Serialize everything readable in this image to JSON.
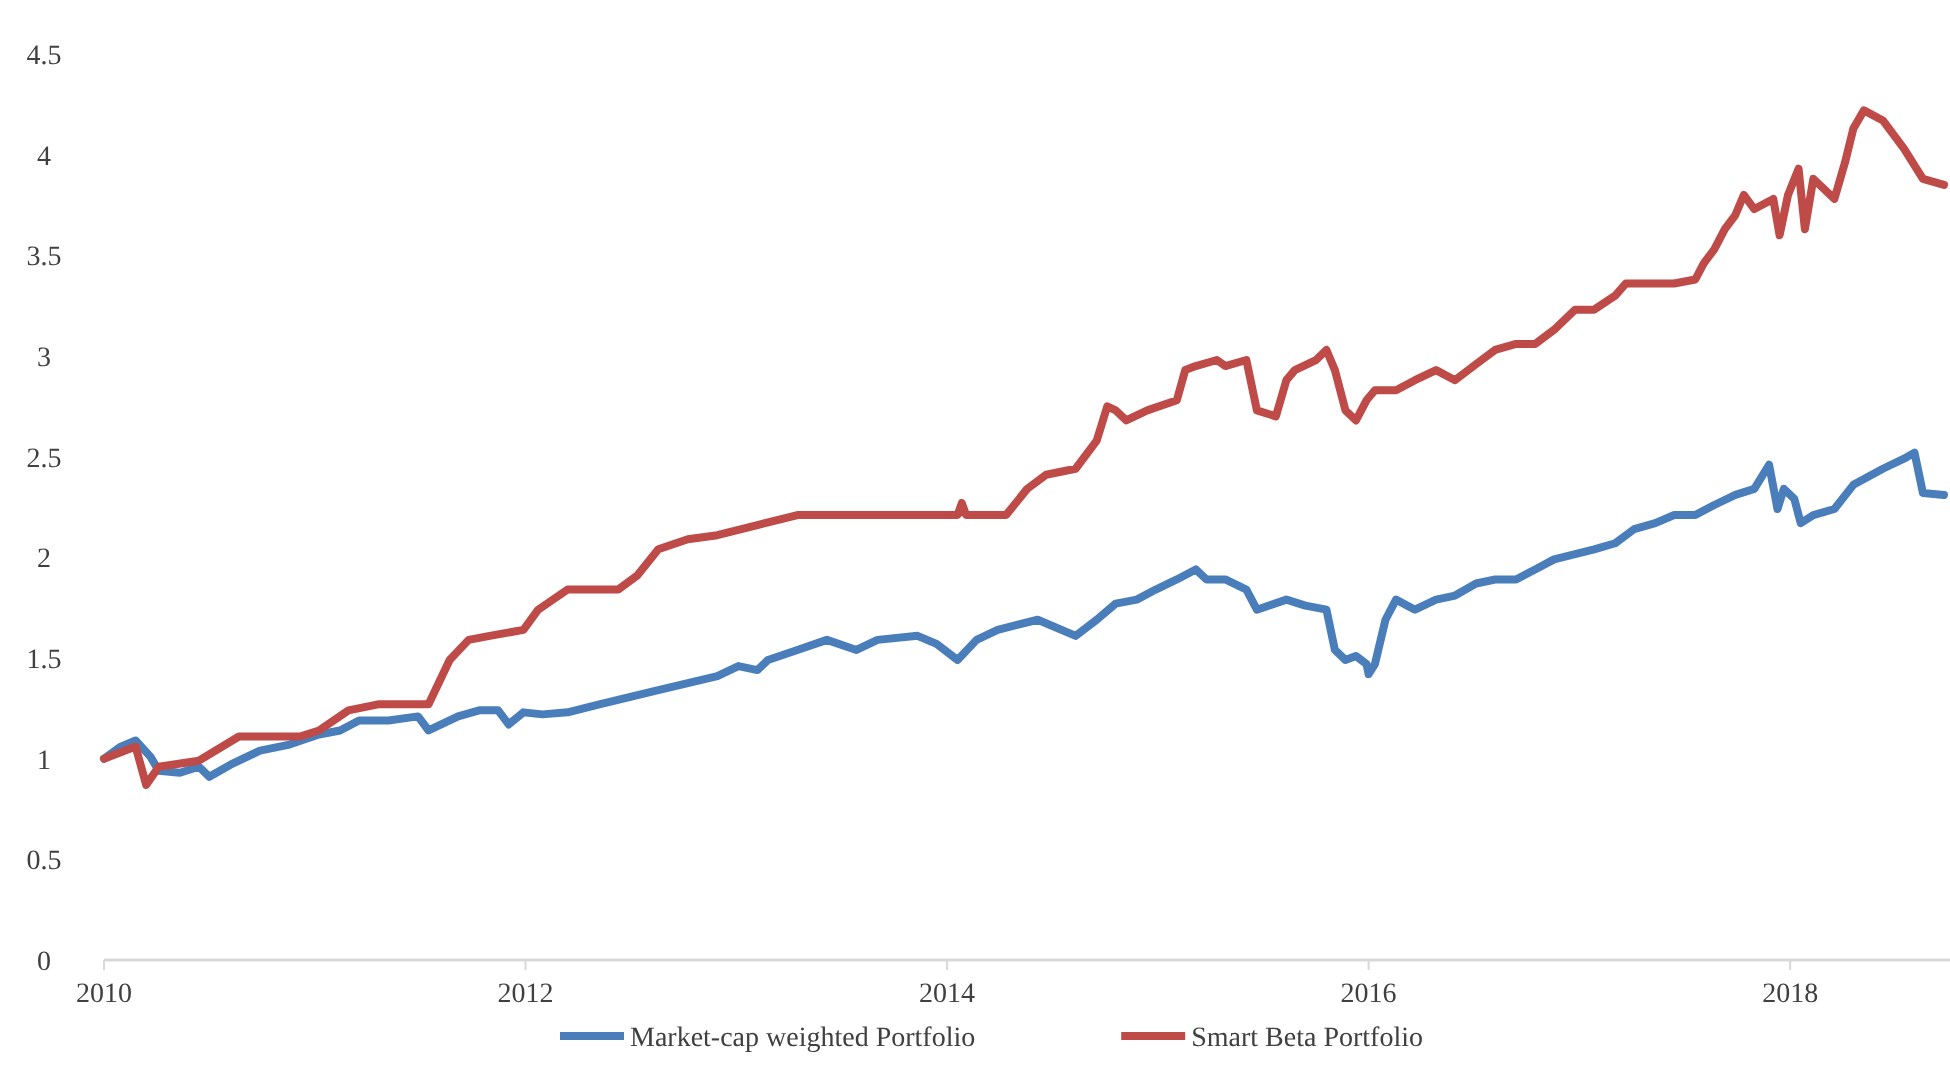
{
  "chart_data": {
    "type": "line",
    "xlim": [
      2010,
      2018.73
    ],
    "xticks": [
      2010,
      2012,
      2014,
      2016,
      2018
    ],
    "ylim": [
      0,
      4.5
    ],
    "yticks": [
      0,
      0.5,
      1,
      1.5,
      2,
      2.5,
      3,
      3.5,
      4,
      4.5
    ],
    "grid": false,
    "legend": "bottom",
    "marker": "none",
    "line_style": "solid",
    "series": [
      {
        "name": "Market-cap weighted Portfolio",
        "color": "#4a7ebb",
        "x": [
          2010,
          2010.08,
          2010.15,
          2010.22,
          2010.26,
          2010.36,
          2010.45,
          2010.5,
          2010.6,
          2010.74,
          2010.88,
          2011.02,
          2011.12,
          2011.21,
          2011.35,
          2011.49,
          2011.54,
          2011.68,
          2011.78,
          2011.87,
          2011.92,
          2011.99,
          2012.08,
          2012.2,
          2012.35,
          2012.63,
          2012.91,
          2013.01,
          2013.1,
          2013.15,
          2013.29,
          2013.43,
          2013.57,
          2013.67,
          2013.86,
          2013.95,
          2014.05,
          2014.14,
          2014.24,
          2014.43,
          2014.61,
          2014.71,
          2014.8,
          2014.9,
          2014.99,
          2015.09,
          2015.18,
          2015.23,
          2015.32,
          2015.42,
          2015.47,
          2015.61,
          2015.7,
          2015.8,
          2015.84,
          2015.89,
          2015.94,
          2015.99,
          2016,
          2016.03,
          2016.08,
          2016.13,
          2016.22,
          2016.32,
          2016.41,
          2016.51,
          2016.6,
          2016.7,
          2016.79,
          2016.88,
          2017.07,
          2017.17,
          2017.26,
          2017.36,
          2017.45,
          2017.55,
          2017.64,
          2017.74,
          2017.83,
          2017.9,
          2017.94,
          2017.97,
          2018.02,
          2018.05,
          2018.11,
          2018.21,
          2018.3,
          2018.44,
          2018.54,
          2018.59,
          2018.63,
          2018.73
        ],
        "values": [
          1,
          1.06,
          1.09,
          1.01,
          0.94,
          0.93,
          0.96,
          0.91,
          0.97,
          1.04,
          1.07,
          1.12,
          1.14,
          1.19,
          1.19,
          1.21,
          1.14,
          1.21,
          1.24,
          1.24,
          1.17,
          1.23,
          1.22,
          1.23,
          1.27,
          1.34,
          1.41,
          1.46,
          1.44,
          1.49,
          1.54,
          1.59,
          1.54,
          1.59,
          1.61,
          1.57,
          1.49,
          1.59,
          1.64,
          1.69,
          1.61,
          1.69,
          1.77,
          1.79,
          1.84,
          1.89,
          1.94,
          1.89,
          1.89,
          1.84,
          1.74,
          1.79,
          1.76,
          1.74,
          1.54,
          1.49,
          1.51,
          1.47,
          1.42,
          1.47,
          1.69,
          1.79,
          1.74,
          1.79,
          1.81,
          1.87,
          1.89,
          1.89,
          1.94,
          1.99,
          2.04,
          2.07,
          2.14,
          2.17,
          2.21,
          2.21,
          2.26,
          2.31,
          2.34,
          2.46,
          2.24,
          2.34,
          2.29,
          2.17,
          2.21,
          2.24,
          2.36,
          2.44,
          2.49,
          2.52,
          2.32,
          2.31
        ]
      },
      {
        "name": "Smart Beta Portfolio",
        "color": "#be4b48",
        "x": [
          2010,
          2010.15,
          2010.2,
          2010.26,
          2010.45,
          2010.64,
          2010.93,
          2011.02,
          2011.16,
          2011.3,
          2011.54,
          2011.64,
          2011.73,
          2011.83,
          2011.99,
          2012.06,
          2012.2,
          2012.44,
          2012.53,
          2012.63,
          2012.77,
          2012.91,
          2013.1,
          2013.29,
          2013.57,
          2014.05,
          2014.07,
          2014.09,
          2014.28,
          2014.38,
          2014.47,
          2014.61,
          2014.71,
          2014.76,
          2014.8,
          2014.85,
          2014.95,
          2015.09,
          2015.13,
          2015.18,
          2015.28,
          2015.32,
          2015.42,
          2015.47,
          2015.56,
          2015.61,
          2015.65,
          2015.75,
          2015.8,
          2015.84,
          2015.89,
          2015.94,
          2015.99,
          2016.03,
          2016.13,
          2016.22,
          2016.32,
          2016.41,
          2016.51,
          2016.6,
          2016.7,
          2016.79,
          2016.88,
          2016.98,
          2017.07,
          2017.17,
          2017.22,
          2017.45,
          2017.55,
          2017.59,
          2017.64,
          2017.69,
          2017.74,
          2017.78,
          2017.83,
          2017.92,
          2017.95,
          2017.99,
          2018.04,
          2018.07,
          2018.11,
          2018.16,
          2018.21,
          2018.26,
          2018.3,
          2018.35,
          2018.44,
          2018.54,
          2018.63,
          2018.73
        ],
        "values": [
          1,
          1.06,
          0.87,
          0.96,
          0.99,
          1.11,
          1.11,
          1.14,
          1.24,
          1.27,
          1.27,
          1.49,
          1.59,
          1.61,
          1.64,
          1.74,
          1.84,
          1.84,
          1.91,
          2.04,
          2.09,
          2.11,
          2.16,
          2.21,
          2.21,
          2.21,
          2.27,
          2.21,
          2.21,
          2.34,
          2.41,
          2.44,
          2.58,
          2.75,
          2.73,
          2.68,
          2.73,
          2.78,
          2.93,
          2.95,
          2.98,
          2.95,
          2.98,
          2.73,
          2.7,
          2.88,
          2.93,
          2.98,
          3.03,
          2.93,
          2.73,
          2.68,
          2.78,
          2.83,
          2.83,
          2.88,
          2.93,
          2.88,
          2.96,
          3.03,
          3.06,
          3.06,
          3.13,
          3.23,
          3.23,
          3.3,
          3.36,
          3.36,
          3.38,
          3.46,
          3.53,
          3.63,
          3.7,
          3.8,
          3.73,
          3.78,
          3.6,
          3.8,
          3.93,
          3.63,
          3.88,
          3.83,
          3.78,
          3.96,
          4.13,
          4.22,
          4.17,
          4.03,
          3.88,
          3.85
        ]
      }
    ]
  }
}
